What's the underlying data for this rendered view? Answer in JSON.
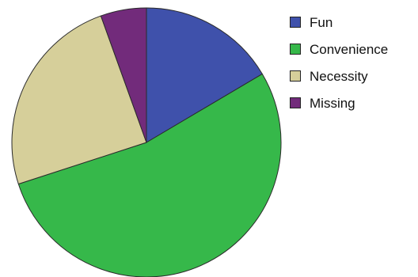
{
  "chart_data": {
    "type": "pie",
    "title": "",
    "categories": [
      "Fun",
      "Convenience",
      "Necessity",
      "Missing"
    ],
    "values": [
      16.5,
      53.5,
      24.5,
      5.5
    ],
    "colors": [
      "#3f51ab",
      "#36b84a",
      "#d6cf9a",
      "#722b7b"
    ],
    "start_angle_deg": 0,
    "direction": "clockwise",
    "legend_position": "top-right"
  }
}
